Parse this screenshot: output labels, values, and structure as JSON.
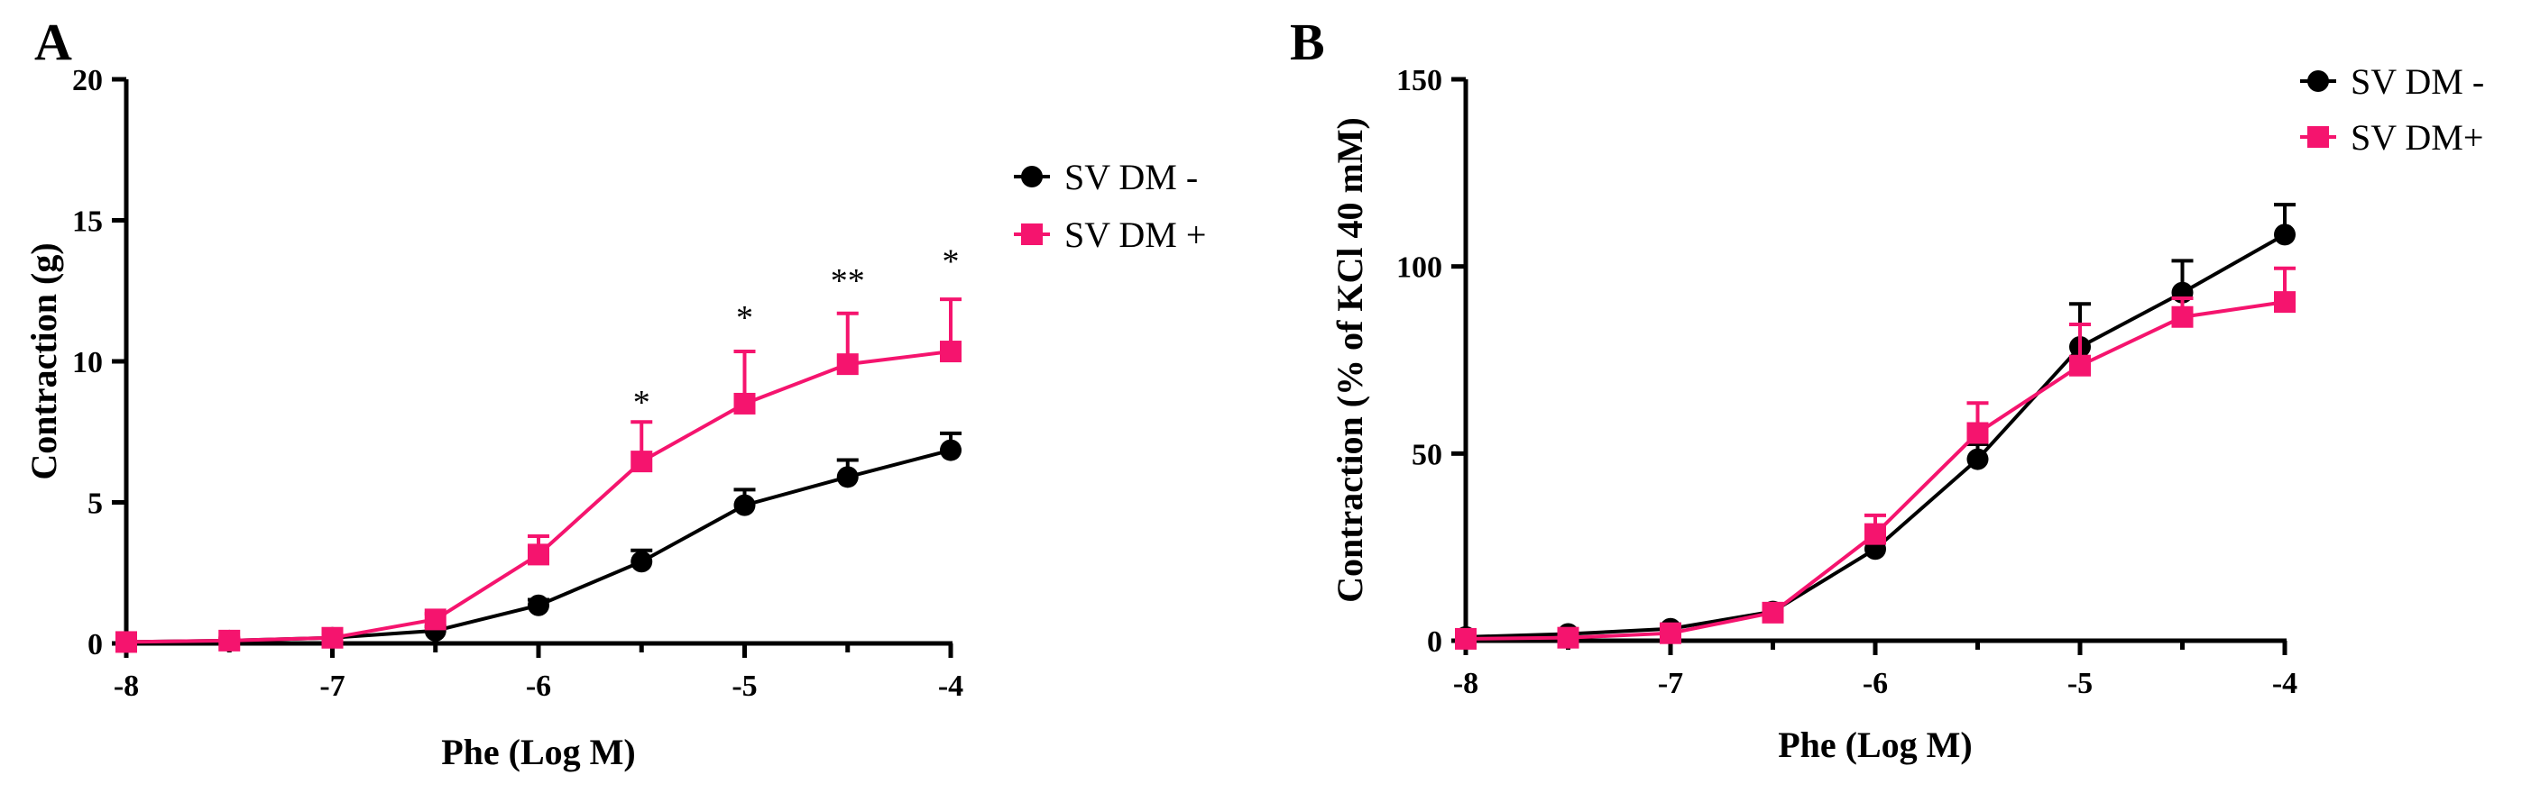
{
  "chart_data": [
    {
      "type": "line",
      "panel_label": "A",
      "xlabel": "Phe (Log M)",
      "ylabel": "Contraction (g)",
      "x": [
        -8,
        -7.5,
        -7,
        -6.5,
        -6,
        -5.5,
        -5,
        -4.5,
        -4
      ],
      "xlim": [
        -8,
        -4
      ],
      "ylim": [
        0,
        20
      ],
      "xticks": [
        -8,
        -7,
        -6,
        -5,
        -4
      ],
      "yticks": [
        0,
        5,
        10,
        15,
        20
      ],
      "xtick_labels": [
        "-8",
        "-7",
        "-6",
        "-5",
        "-4"
      ],
      "ytick_labels": [
        "0",
        "5",
        "10",
        "15",
        "20"
      ],
      "legend_position": "top-right",
      "grid": false,
      "series": [
        {
          "name": "SV DM -",
          "marker": "circle",
          "color": "#000000",
          "values": [
            0.05,
            0.1,
            0.2,
            0.45,
            1.35,
            2.9,
            4.9,
            5.9,
            6.85
          ],
          "error": [
            0.05,
            0.05,
            0.1,
            0.15,
            0.2,
            0.4,
            0.55,
            0.6,
            0.6
          ]
        },
        {
          "name": "SV DM +",
          "marker": "square",
          "color": "#f5146e",
          "values": [
            0.05,
            0.1,
            0.2,
            0.85,
            3.15,
            6.45,
            8.5,
            9.9,
            10.35
          ],
          "error": [
            0.05,
            0.1,
            0.15,
            0.2,
            0.65,
            1.4,
            1.85,
            1.8,
            1.85
          ]
        }
      ],
      "annotations": [
        {
          "x": -5.5,
          "y": 8.6,
          "text": "*"
        },
        {
          "x": -5,
          "y": 11.6,
          "text": "*"
        },
        {
          "x": -4.5,
          "y": 12.9,
          "text": "**"
        },
        {
          "x": -4,
          "y": 13.6,
          "text": "*"
        }
      ]
    },
    {
      "type": "line",
      "panel_label": "B",
      "xlabel": "Phe (Log M)",
      "ylabel": "Contraction (% of KCl 40 mM)",
      "x": [
        -8,
        -7.5,
        -7,
        -6.5,
        -6,
        -5.5,
        -5,
        -4.5,
        -4
      ],
      "xlim": [
        -8,
        -4
      ],
      "ylim": [
        0,
        150
      ],
      "xticks": [
        -8,
        -7,
        -6,
        -5,
        -4
      ],
      "yticks": [
        0,
        50,
        100,
        150
      ],
      "xtick_labels": [
        "-8",
        "-7",
        "-6",
        "-5",
        "-4"
      ],
      "ytick_labels": [
        "0",
        "50",
        "100",
        "150"
      ],
      "legend_position": "top-right",
      "grid": false,
      "series": [
        {
          "name": "SV DM -",
          "marker": "circle",
          "color": "#000000",
          "values": [
            1,
            1.8,
            3.2,
            7.8,
            24.5,
            48.5,
            78.5,
            93,
            108.5
          ],
          "error": [
            0.5,
            0.8,
            1.2,
            1.5,
            3,
            4,
            11.5,
            8.5,
            8
          ]
        },
        {
          "name": "SV DM+",
          "marker": "square",
          "color": "#f5146e",
          "values": [
            0.5,
            0.8,
            2,
            7.5,
            28.5,
            55.5,
            73.5,
            86.5,
            90.5
          ],
          "error": [
            0.3,
            0.5,
            1,
            1.5,
            5,
            8,
            11,
            5,
            9
          ]
        }
      ],
      "annotations": []
    }
  ]
}
